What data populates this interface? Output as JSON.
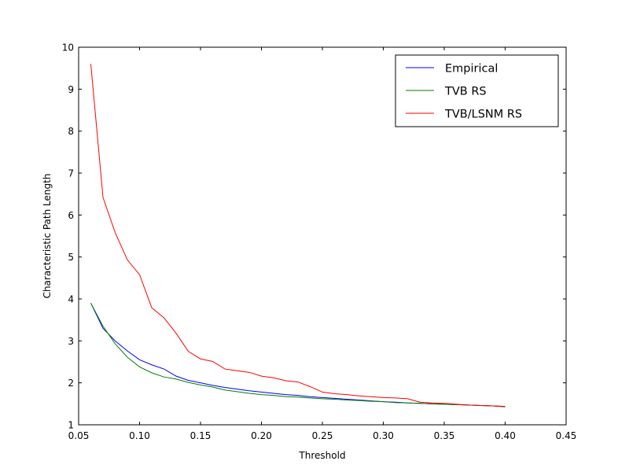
{
  "chart_data": {
    "type": "line",
    "title": "",
    "xlabel": "Threshold",
    "ylabel": "Characteristic Path Length",
    "xlim": [
      0.05,
      0.45
    ],
    "ylim": [
      1,
      10
    ],
    "xticks": [
      "0.05",
      "0.10",
      "0.15",
      "0.20",
      "0.25",
      "0.30",
      "0.35",
      "0.40",
      "0.45"
    ],
    "yticks": [
      "1",
      "2",
      "3",
      "4",
      "5",
      "6",
      "7",
      "8",
      "9",
      "10"
    ],
    "grid": false,
    "legend_position": "top-right",
    "x": [
      0.06,
      0.07,
      0.08,
      0.09,
      0.1,
      0.11,
      0.12,
      0.13,
      0.14,
      0.15,
      0.16,
      0.17,
      0.18,
      0.19,
      0.2,
      0.21,
      0.22,
      0.23,
      0.24,
      0.25,
      0.26,
      0.27,
      0.28,
      0.29,
      0.3,
      0.31,
      0.32,
      0.33,
      0.34,
      0.35,
      0.36,
      0.37,
      0.38,
      0.39,
      0.4
    ],
    "series": [
      {
        "name": "Empirical",
        "color": "#0000ff",
        "values": [
          3.9,
          3.3,
          3.0,
          2.76,
          2.55,
          2.43,
          2.33,
          2.16,
          2.06,
          2.0,
          1.94,
          1.89,
          1.85,
          1.81,
          1.78,
          1.75,
          1.72,
          1.7,
          1.67,
          1.65,
          1.63,
          1.61,
          1.59,
          1.57,
          1.55,
          1.54,
          1.52,
          1.51,
          1.5,
          1.49,
          1.48,
          1.47,
          1.46,
          1.45,
          1.43
        ]
      },
      {
        "name": "TVB RS",
        "color": "#008000",
        "values": [
          3.9,
          3.35,
          2.93,
          2.61,
          2.38,
          2.24,
          2.14,
          2.09,
          2.01,
          1.95,
          1.9,
          1.83,
          1.79,
          1.75,
          1.72,
          1.7,
          1.67,
          1.66,
          1.64,
          1.62,
          1.61,
          1.59,
          1.58,
          1.56,
          1.55,
          1.53,
          1.52,
          1.51,
          1.5,
          1.49,
          1.48,
          1.47,
          1.46,
          1.45,
          1.44
        ]
      },
      {
        "name": "TVB/LSNM RS",
        "color": "#ff0000",
        "values": [
          9.6,
          6.42,
          5.58,
          4.93,
          4.58,
          3.79,
          3.55,
          3.18,
          2.75,
          2.57,
          2.51,
          2.33,
          2.29,
          2.25,
          2.16,
          2.12,
          2.05,
          2.02,
          1.91,
          1.78,
          1.74,
          1.72,
          1.69,
          1.67,
          1.65,
          1.64,
          1.62,
          1.54,
          1.52,
          1.51,
          1.49,
          1.47,
          1.46,
          1.45,
          1.43
        ]
      }
    ]
  }
}
